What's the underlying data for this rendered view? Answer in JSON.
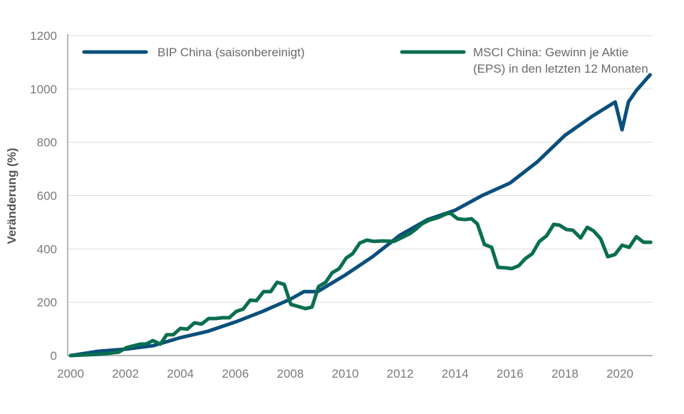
{
  "chart_data": {
    "type": "line",
    "title": "",
    "xlabel": "",
    "ylabel": "Veränderung (%)",
    "xlim": [
      2000,
      2021.2
    ],
    "ylim": [
      0,
      1200
    ],
    "x_ticks": [
      "2000",
      "2002",
      "2004",
      "2006",
      "2008",
      "2010",
      "2012",
      "2014",
      "2016",
      "2018",
      "2020"
    ],
    "y_ticks": [
      "0",
      "200",
      "400",
      "600",
      "800",
      "1000",
      "1200"
    ],
    "grid": "horizontal",
    "legend_position": "top",
    "series": [
      {
        "name": "BIP China (saisonbereinigt)",
        "color": "#0b4f7c",
        "points": [
          [
            2000,
            0
          ],
          [
            2001,
            16
          ],
          [
            2002,
            24
          ],
          [
            2003,
            37
          ],
          [
            2004,
            67
          ],
          [
            2005,
            91
          ],
          [
            2006,
            126
          ],
          [
            2007,
            166
          ],
          [
            2008,
            211
          ],
          [
            2008.5,
            240
          ],
          [
            2009,
            240
          ],
          [
            2010,
            302
          ],
          [
            2011,
            371
          ],
          [
            2012,
            452
          ],
          [
            2013,
            510
          ],
          [
            2014,
            545
          ],
          [
            2015,
            601
          ],
          [
            2016,
            647
          ],
          [
            2017,
            727
          ],
          [
            2018,
            826
          ],
          [
            2019,
            898
          ],
          [
            2019.83,
            951
          ],
          [
            2020.08,
            847
          ],
          [
            2020.31,
            951
          ],
          [
            2020.6,
            994
          ],
          [
            2021.1,
            1053
          ]
        ]
      },
      {
        "name": "MSCI China: Gewinn je Aktie (EPS) in den letzten 12 Monaten",
        "legend_lines": [
          "MSCI China: Gewinn je Aktie",
          "(EPS) in den letzten 12 Monaten"
        ],
        "color": "#0a6e50",
        "points": [
          [
            2000,
            0
          ],
          [
            2001.06,
            5
          ],
          [
            2001.76,
            13
          ],
          [
            2002.02,
            29
          ],
          [
            2002.54,
            43
          ],
          [
            2002.75,
            43
          ],
          [
            2003,
            56
          ],
          [
            2003.27,
            43
          ],
          [
            2003.5,
            78
          ],
          [
            2003.74,
            78
          ],
          [
            2004,
            102
          ],
          [
            2004.25,
            99
          ],
          [
            2004.51,
            123
          ],
          [
            2004.77,
            118
          ],
          [
            2005.03,
            139
          ],
          [
            2005.29,
            139
          ],
          [
            2005.53,
            142
          ],
          [
            2005.78,
            142
          ],
          [
            2006.04,
            166
          ],
          [
            2006.28,
            174
          ],
          [
            2006.54,
            208
          ],
          [
            2006.77,
            206
          ],
          [
            2007.03,
            240
          ],
          [
            2007.29,
            240
          ],
          [
            2007.52,
            275
          ],
          [
            2007.78,
            267
          ],
          [
            2008.02,
            192
          ],
          [
            2008.56,
            176
          ],
          [
            2008.79,
            182
          ],
          [
            2009.03,
            259
          ],
          [
            2009.29,
            275
          ],
          [
            2009.52,
            310
          ],
          [
            2009.78,
            326
          ],
          [
            2010.04,
            366
          ],
          [
            2010.27,
            382
          ],
          [
            2010.53,
            422
          ],
          [
            2010.79,
            433
          ],
          [
            2011.05,
            428
          ],
          [
            2011.36,
            430
          ],
          [
            2011.78,
            428
          ],
          [
            2012.09,
            444
          ],
          [
            2012.35,
            457
          ],
          [
            2012.56,
            473
          ],
          [
            2012.79,
            494
          ],
          [
            2013.07,
            508
          ],
          [
            2013.39,
            518
          ],
          [
            2013.7,
            532
          ],
          [
            2013.83,
            534
          ],
          [
            2014.09,
            513
          ],
          [
            2014.35,
            510
          ],
          [
            2014.6,
            513
          ],
          [
            2014.81,
            494
          ],
          [
            2015.07,
            417
          ],
          [
            2015.33,
            406
          ],
          [
            2015.56,
            331
          ],
          [
            2015.85,
            329
          ],
          [
            2016.06,
            326
          ],
          [
            2016.32,
            337
          ],
          [
            2016.55,
            363
          ],
          [
            2016.81,
            382
          ],
          [
            2017.07,
            428
          ],
          [
            2017.33,
            449
          ],
          [
            2017.59,
            492
          ],
          [
            2017.8,
            489
          ],
          [
            2018.05,
            473
          ],
          [
            2018.29,
            470
          ],
          [
            2018.57,
            441
          ],
          [
            2018.81,
            481
          ],
          [
            2019.04,
            468
          ],
          [
            2019.3,
            438
          ],
          [
            2019.56,
            371
          ],
          [
            2019.82,
            379
          ],
          [
            2020.08,
            414
          ],
          [
            2020.34,
            406
          ],
          [
            2020.6,
            446
          ],
          [
            2020.86,
            425
          ],
          [
            2021.12,
            425
          ]
        ]
      }
    ]
  }
}
